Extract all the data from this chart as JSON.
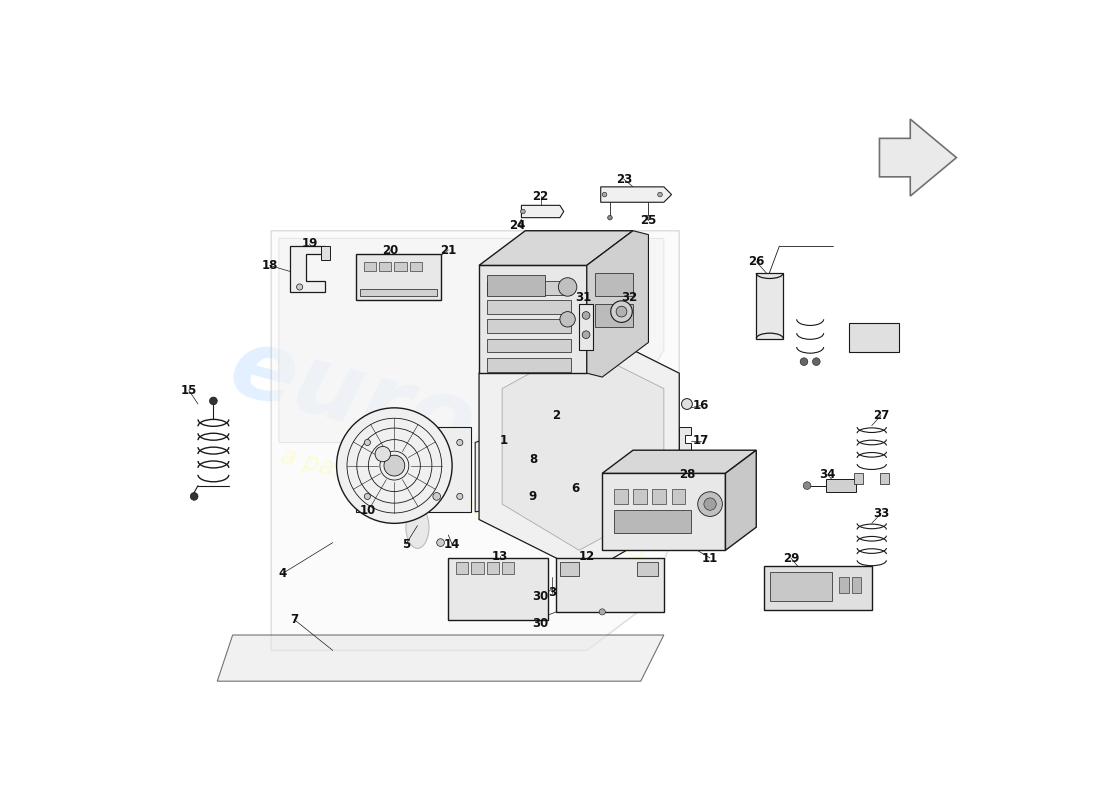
{
  "bg_color": "#ffffff",
  "lc": "#1a1a1a",
  "lw_thin": 0.6,
  "lw_med": 0.9,
  "lw_thick": 1.2,
  "fc_light": "#f0f0f0",
  "fc_mid": "#e0e0e0",
  "fc_dark": "#c8c8c8",
  "wm1_color": "#ddeeff",
  "wm2_color": "#ffffaa",
  "arrow_color": "#dddddd"
}
